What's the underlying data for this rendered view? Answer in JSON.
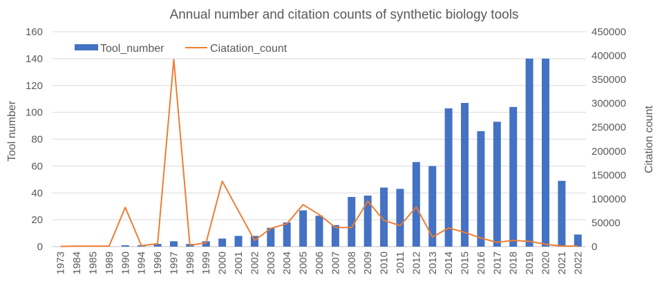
{
  "chart_data": {
    "type": "bar",
    "title": "Annual number and citation counts of synthetic biology tools",
    "xlabel": "",
    "ylabel": "Tool number",
    "y2label": "Citation count",
    "categories": [
      "1973",
      "1984",
      "1985",
      "1989",
      "1990",
      "1994",
      "1996",
      "1997",
      "1998",
      "1999",
      "2000",
      "2001",
      "2002",
      "2003",
      "2004",
      "2005",
      "2006",
      "2007",
      "2008",
      "2009",
      "2010",
      "2011",
      "2012",
      "2013",
      "2014",
      "2015",
      "2016",
      "2017",
      "2018",
      "2019",
      "2020",
      "2021",
      "2022"
    ],
    "ylim": [
      0,
      160
    ],
    "y2lim": [
      0,
      450000
    ],
    "yticks": [
      "0",
      "20",
      "40",
      "60",
      "80",
      "100",
      "120",
      "140",
      "160"
    ],
    "y2ticks": [
      "0",
      "50000",
      "100000",
      "150000",
      "200000",
      "250000",
      "300000",
      "350000",
      "400000",
      "450000"
    ],
    "grid": true,
    "legend_position": "top-left",
    "series": [
      {
        "name": "Tool_number",
        "type": "bar",
        "axis": "left",
        "color": "#4472C4",
        "values": [
          0,
          0,
          0,
          0,
          1,
          1,
          2,
          4,
          2,
          4,
          6,
          8,
          8,
          14,
          18,
          27,
          23,
          16,
          37,
          38,
          44,
          43,
          63,
          60,
          103,
          107,
          86,
          93,
          104,
          140,
          140,
          49,
          9
        ]
      },
      {
        "name": "Ciatation_count",
        "type": "line",
        "axis": "right",
        "color": "#ED7D31",
        "values": [
          500,
          1000,
          1000,
          1000,
          82000,
          2000,
          6000,
          392000,
          3000,
          8000,
          137000,
          75000,
          13000,
          38000,
          48000,
          88000,
          67000,
          40000,
          40000,
          95000,
          55000,
          44000,
          83000,
          20000,
          39000,
          30000,
          18000,
          9000,
          13000,
          11000,
          5000,
          1000,
          1000
        ]
      }
    ]
  }
}
